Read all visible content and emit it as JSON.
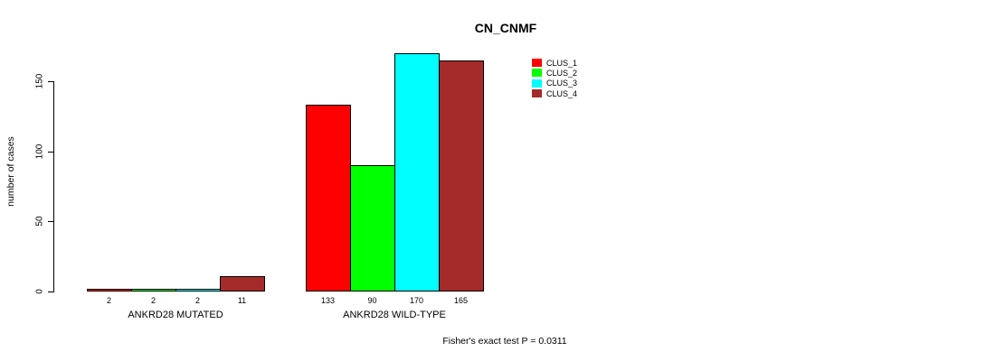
{
  "title": "CN_CNMF",
  "ylabel": "number of cases",
  "footer": "Fisher's exact test P = 0.0311",
  "chart_data": {
    "type": "bar",
    "grouped": true,
    "categories": [
      "ANKRD28 MUTATED",
      "ANKRD28 WILD-TYPE"
    ],
    "series": [
      {
        "name": "CLUS_1",
        "color": "#ff0000",
        "values": [
          2,
          133
        ]
      },
      {
        "name": "CLUS_2",
        "color": "#00ff00",
        "values": [
          2,
          90
        ]
      },
      {
        "name": "CLUS_3",
        "color": "#00ffff",
        "values": [
          2,
          170
        ]
      },
      {
        "name": "CLUS_4",
        "color": "#a52a2a",
        "values": [
          11,
          165
        ]
      }
    ],
    "title": "CN_CNMF",
    "xlabel": "",
    "ylabel": "number of cases",
    "yticks": [
      0,
      50,
      100,
      150
    ],
    "ylim": [
      0,
      175
    ],
    "grid": false,
    "bar_outline_color": "#000000",
    "legend_position": "top-right",
    "value_labels_shown": true,
    "annotation": "Fisher's exact test P = 0.0311"
  }
}
